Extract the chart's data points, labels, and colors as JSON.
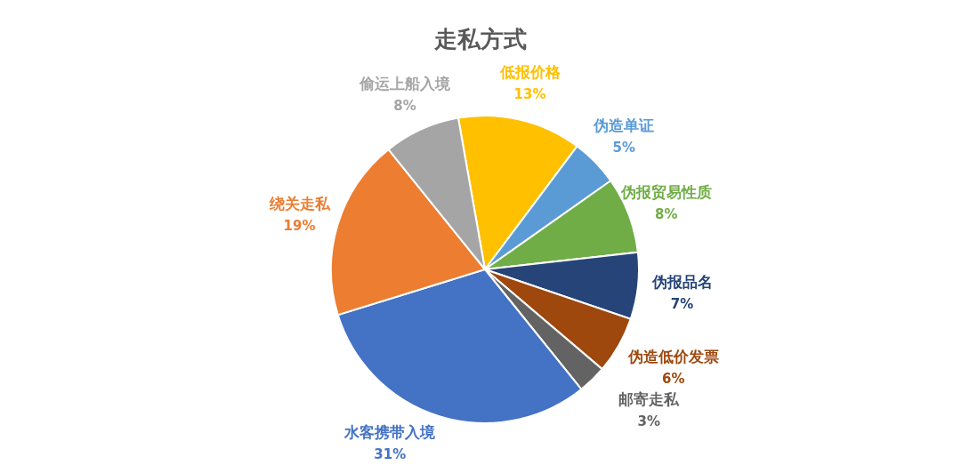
{
  "chart_data": {
    "type": "pie",
    "title": "走私方式",
    "categories": [
      "低报价格",
      "伪造单证",
      "伪报贸易性质",
      "伪报品名",
      "伪造低价发票",
      "邮寄走私",
      "水客携带入境",
      "绕关走私",
      "偷运上船入境"
    ],
    "values": [
      13,
      5,
      8,
      7,
      6,
      3,
      31,
      19,
      8
    ],
    "value_labels": [
      "13%",
      "5%",
      "8%",
      "7%",
      "6%",
      "3%",
      "31%",
      "19%",
      "8%"
    ],
    "colors": [
      "#ffc000",
      "#5b9bd5",
      "#70ad47",
      "#264478",
      "#9e480e",
      "#636363",
      "#4472c4",
      "#ed7d31",
      "#a5a5a5"
    ]
  }
}
